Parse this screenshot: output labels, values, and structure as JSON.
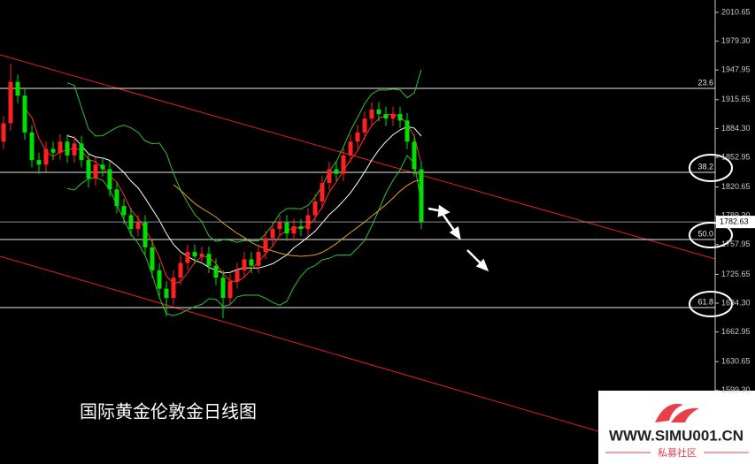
{
  "chart_data": {
    "type": "candlestick",
    "title": "国际黄金伦敦金日线图",
    "watermark": {
      "site": "WWW.SIMU001.CN",
      "name": "私募社区"
    },
    "up_color": "#ff2020",
    "down_color": "#00e000",
    "ylim": [
      1519.3,
      2024.1
    ],
    "yticks": [
      2010.65,
      {
        "value": 1979.3,
        "label": "1979.30"
      },
      1947.95,
      1915.65,
      {
        "value": 1884.3,
        "label": "1884.30"
      },
      1852.95,
      1820.65,
      {
        "value": 1789.3,
        "label": "1789.30"
      },
      1757.95,
      1725.65,
      {
        "value": 1694.3,
        "label": "1694.30"
      },
      1662.95,
      1630.65,
      {
        "value": 1599.3,
        "label": "1599.30"
      }
    ],
    "fib_levels": [
      {
        "ratio": "23.6",
        "price": 1928
      },
      {
        "ratio": "38.2",
        "price": 1836.6
      },
      {
        "ratio": "50.0",
        "price": 1763.5
      },
      {
        "ratio": "61.8",
        "price": 1689.5
      }
    ],
    "open": [
      1870,
      1890,
      1935,
      1920,
      1880,
      1850,
      1845,
      1862,
      1858,
      1870,
      1855,
      1868,
      1850,
      1830,
      1845,
      1840,
      1818,
      1800,
      1790,
      1775,
      1782,
      1755,
      1730,
      1710,
      1700,
      1722,
      1738,
      1750,
      1745,
      1748,
      1735,
      1722,
      1700,
      1718,
      1730,
      1742,
      1735,
      1750,
      1765,
      1775,
      1782,
      1770,
      1778,
      1775,
      1790,
      1805,
      1825,
      1840,
      1835,
      1855,
      1870,
      1880,
      1895,
      1905,
      1900,
      1895,
      1900,
      1893,
      1870,
      1840
    ],
    "high": [
      1898,
      1955,
      1943,
      1928,
      1888,
      1858,
      1870,
      1870,
      1878,
      1878,
      1876,
      1876,
      1858,
      1853,
      1853,
      1848,
      1826,
      1808,
      1798,
      1790,
      1790,
      1763,
      1738,
      1718,
      1730,
      1746,
      1758,
      1758,
      1756,
      1756,
      1743,
      1730,
      1726,
      1738,
      1750,
      1750,
      1758,
      1773,
      1783,
      1790,
      1790,
      1786,
      1786,
      1798,
      1813,
      1833,
      1848,
      1848,
      1863,
      1878,
      1888,
      1903,
      1913,
      1913,
      1908,
      1908,
      1908,
      1901,
      1878,
      1848
    ],
    "low": [
      1862,
      1882,
      1912,
      1872,
      1842,
      1835,
      1837,
      1850,
      1850,
      1847,
      1847,
      1842,
      1820,
      1822,
      1832,
      1810,
      1792,
      1780,
      1767,
      1767,
      1747,
      1722,
      1700,
      1680,
      1692,
      1714,
      1730,
      1737,
      1737,
      1727,
      1714,
      1678,
      1692,
      1710,
      1722,
      1727,
      1727,
      1742,
      1757,
      1767,
      1762,
      1762,
      1767,
      1767,
      1782,
      1797,
      1817,
      1827,
      1827,
      1847,
      1862,
      1872,
      1887,
      1892,
      1887,
      1887,
      1885,
      1862,
      1832,
      1775
    ],
    "close": [
      1890,
      1935,
      1920,
      1880,
      1850,
      1845,
      1862,
      1858,
      1870,
      1855,
      1868,
      1850,
      1830,
      1845,
      1840,
      1818,
      1800,
      1790,
      1775,
      1782,
      1755,
      1730,
      1710,
      1700,
      1722,
      1738,
      1750,
      1745,
      1748,
      1735,
      1722,
      1700,
      1718,
      1730,
      1742,
      1735,
      1750,
      1765,
      1775,
      1782,
      1770,
      1778,
      1775,
      1790,
      1805,
      1825,
      1840,
      1835,
      1855,
      1870,
      1880,
      1895,
      1905,
      1900,
      1895,
      1900,
      1893,
      1870,
      1840,
      1782.63
    ]
  }
}
